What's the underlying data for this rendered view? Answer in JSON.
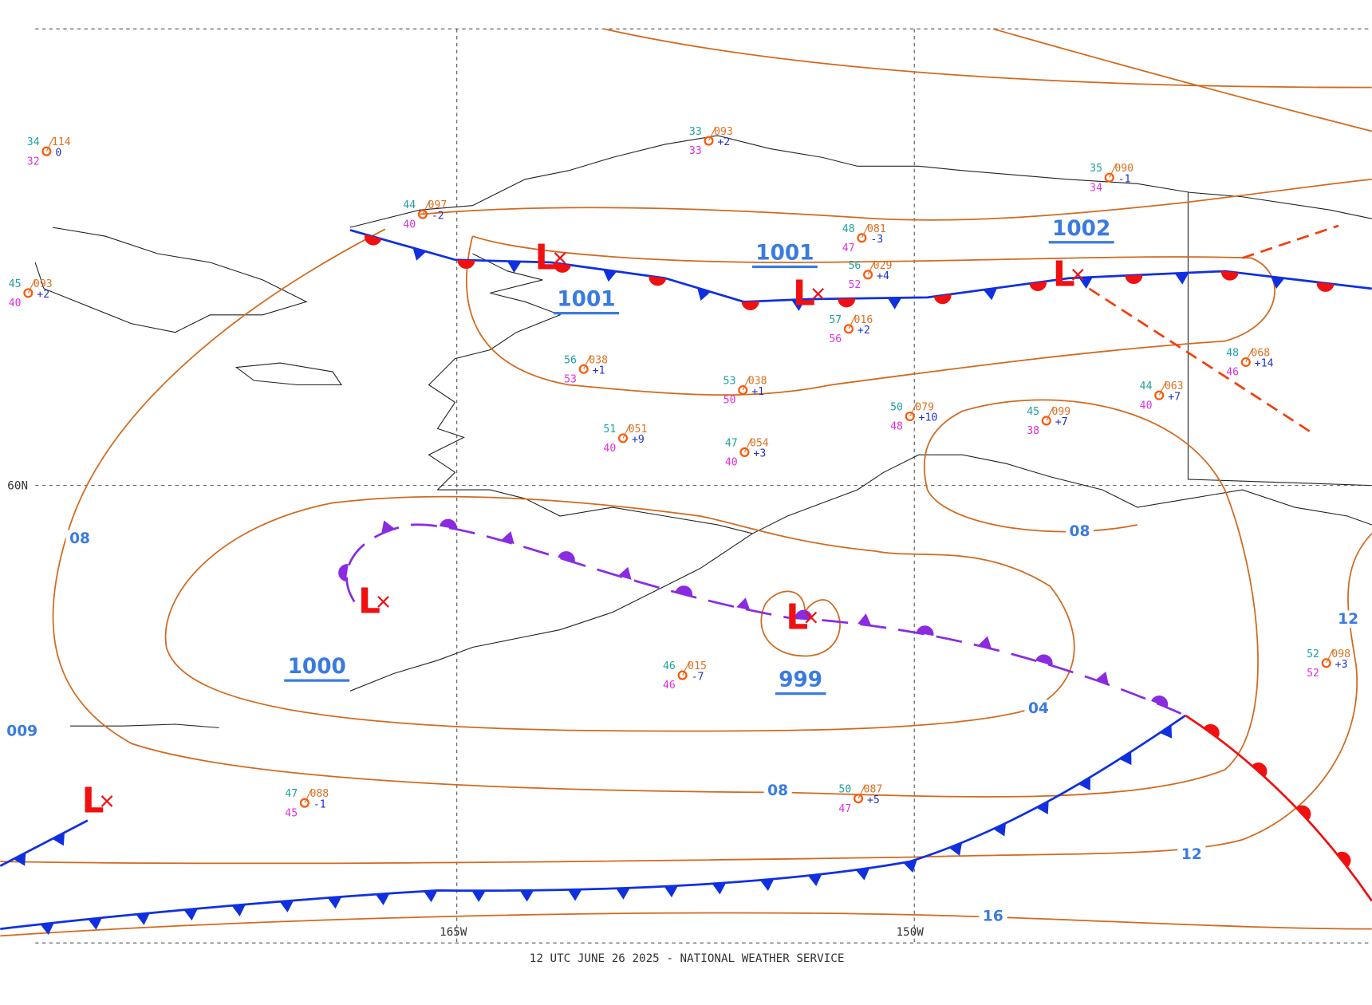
{
  "footer": "12 UTC JUNE 26 2025 - NATIONAL WEATHER SERVICE",
  "grid_labels": [
    "60N",
    "165W",
    "150W"
  ],
  "isobar_labels": [
    "08",
    "12",
    "04",
    "08",
    "12",
    "16",
    "08",
    "009"
  ],
  "pressure_centers": [
    "1001",
    "1001",
    "1002",
    "1000",
    "999"
  ],
  "lows": [
    "L",
    "L",
    "L",
    "L",
    "L",
    "L"
  ],
  "stations": [
    {
      "temp": "34",
      "pressure": "114",
      "dew": "32",
      "tendency": "0"
    },
    {
      "temp": "33",
      "pressure": "093",
      "dew": "33",
      "tendency": "+2"
    },
    {
      "temp": "44",
      "pressure": "097",
      "dew": "40",
      "tendency": "-2"
    },
    {
      "temp": "35",
      "pressure": "090",
      "dew": "34",
      "tendency": "-1"
    },
    {
      "temp": "48",
      "pressure": "081",
      "dew": "47",
      "tendency": "-3"
    },
    {
      "temp": "56",
      "pressure": "029",
      "dew": "52",
      "tendency": "+4"
    },
    {
      "temp": "57",
      "pressure": "016",
      "dew": "56",
      "tendency": "+2"
    },
    {
      "temp": "45",
      "pressure": "093",
      "dew": "40",
      "tendency": "+2"
    },
    {
      "temp": "56",
      "pressure": "038",
      "dew": "53",
      "tendency": "+1"
    },
    {
      "temp": "53",
      "pressure": "038",
      "dew": "50",
      "tendency": "+1"
    },
    {
      "temp": "50",
      "pressure": "079",
      "dew": "48",
      "tendency": "+10"
    },
    {
      "temp": "45",
      "pressure": "099",
      "dew": "38",
      "tendency": "+7"
    },
    {
      "temp": "48",
      "pressure": "068",
      "dew": "46",
      "tendency": "+14"
    },
    {
      "temp": "44",
      "pressure": "063",
      "dew": "40",
      "tendency": "+7"
    },
    {
      "temp": "51",
      "pressure": "051",
      "dew": "40",
      "tendency": "+9"
    },
    {
      "temp": "47",
      "pressure": "054",
      "dew": "40",
      "tendency": "+3"
    },
    {
      "temp": "52",
      "pressure": "098",
      "dew": "52",
      "tendency": "+3"
    },
    {
      "temp": "50",
      "pressure": "087",
      "dew": "47",
      "tendency": "+5"
    },
    {
      "temp": "47",
      "pressure": "088",
      "dew": "45",
      "tendency": "-1"
    },
    {
      "temp": "46",
      "pressure": "015",
      "dew": "46",
      "tendency": "-7"
    }
  ]
}
